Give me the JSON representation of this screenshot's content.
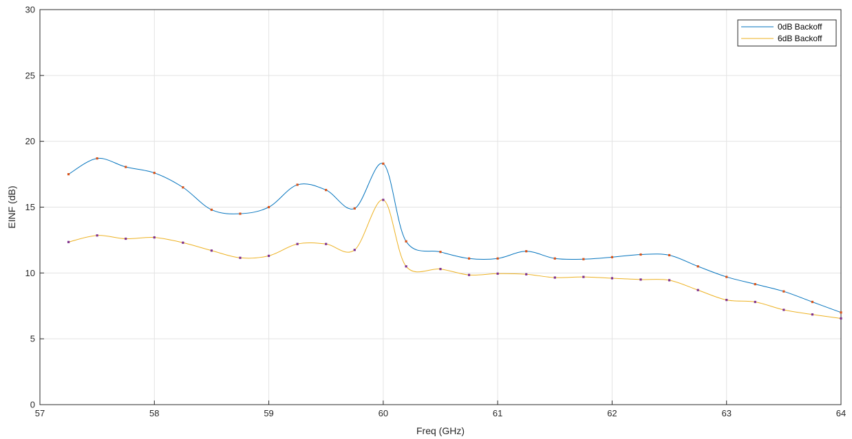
{
  "chart_data": {
    "type": "line",
    "xlabel": "Freq (GHz)",
    "ylabel": "EINF (dB)",
    "xlim": [
      57,
      64
    ],
    "ylim": [
      0,
      30
    ],
    "xticks": [
      57,
      58,
      59,
      60,
      61,
      62,
      63,
      64
    ],
    "yticks": [
      0,
      5,
      10,
      15,
      20,
      25,
      30
    ],
    "grid": true,
    "legend_position": "top-right",
    "series": [
      {
        "name": "0dB Backoff",
        "color": "#0072BD",
        "marker_color": "#D95319",
        "x": [
          57.25,
          57.5,
          57.75,
          58.0,
          58.25,
          58.5,
          58.75,
          59.0,
          59.25,
          59.5,
          59.75,
          60.0,
          60.2,
          60.5,
          60.75,
          61.0,
          61.25,
          61.5,
          61.75,
          62.0,
          62.25,
          62.5,
          62.75,
          63.0,
          63.25,
          63.5,
          63.75,
          64.0
        ],
        "values": [
          17.5,
          18.7,
          18.05,
          17.6,
          16.5,
          14.8,
          14.5,
          15.0,
          16.7,
          16.3,
          14.9,
          18.3,
          12.4,
          11.6,
          11.1,
          11.1,
          11.65,
          11.1,
          11.05,
          11.2,
          11.4,
          11.35,
          10.5,
          9.7,
          9.15,
          8.6,
          7.8,
          7.0
        ]
      },
      {
        "name": "6dB Backoff",
        "color": "#EDB120",
        "marker_color": "#7E2F8E",
        "x": [
          57.25,
          57.5,
          57.75,
          58.0,
          58.25,
          58.5,
          58.75,
          59.0,
          59.25,
          59.5,
          59.75,
          60.0,
          60.2,
          60.5,
          60.75,
          61.0,
          61.25,
          61.5,
          61.75,
          62.0,
          62.25,
          62.5,
          62.75,
          63.0,
          63.25,
          63.5,
          63.75,
          64.0
        ],
        "values": [
          12.35,
          12.85,
          12.6,
          12.7,
          12.3,
          11.7,
          11.15,
          11.3,
          12.2,
          12.2,
          11.75,
          15.55,
          10.5,
          10.3,
          9.85,
          9.95,
          9.9,
          9.65,
          9.7,
          9.6,
          9.5,
          9.45,
          8.7,
          7.95,
          7.8,
          7.2,
          6.85,
          6.55
        ]
      }
    ]
  }
}
